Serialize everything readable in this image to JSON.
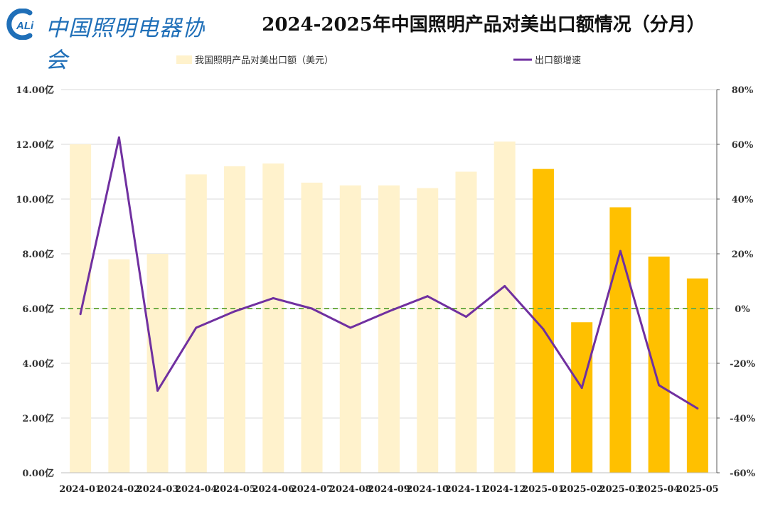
{
  "logo": {
    "mark_text": "ALi",
    "org_name": "中国照明电器协会",
    "brand_color": "#1f6fb8"
  },
  "chart_data": {
    "type": "bar",
    "title": "2024-2025年中国照明产品对美出口额情况（分月）",
    "categories": [
      "2024-01",
      "2024-02",
      "2024-03",
      "2024-04",
      "2024-05",
      "2024-06",
      "2024-07",
      "2024-08",
      "2024-09",
      "2024-10",
      "2024-11",
      "2024-12",
      "2025-01",
      "2025-02",
      "2025-03",
      "2025-04",
      "2025-05"
    ],
    "series": [
      {
        "name": "我国照明产品对美出口额（美元）",
        "type": "bar",
        "axis": "left",
        "values": [
          12.0,
          7.8,
          8.0,
          10.9,
          11.2,
          11.3,
          10.6,
          10.5,
          10.5,
          10.4,
          11.0,
          12.1,
          11.1,
          5.5,
          9.7,
          7.9,
          7.1
        ],
        "color_2024": "#fff2cc",
        "color_2025": "#ffc000"
      },
      {
        "name": "出口额增速",
        "type": "line",
        "axis": "right",
        "values": [
          -2,
          62.5,
          -30,
          -7,
          -1,
          3.8,
          0,
          -7,
          -1,
          4.5,
          -3,
          8.2,
          -7.5,
          -29,
          21,
          -28,
          -36.5
        ],
        "color": "#7030a0"
      }
    ],
    "y_left": {
      "ticks": [
        0,
        2,
        4,
        6,
        8,
        10,
        12,
        14
      ],
      "tick_labels": [
        "0.00亿",
        "2.00亿",
        "4.00亿",
        "6.00亿",
        "8.00亿",
        "10.00亿",
        "12.00亿",
        "14.00亿"
      ],
      "ylim": [
        0,
        14
      ]
    },
    "y_right": {
      "ticks": [
        -60,
        -40,
        -20,
        0,
        20,
        40,
        60,
        80
      ],
      "tick_labels": [
        "-60%",
        "-40%",
        "-20%",
        "0%",
        "20%",
        "40%",
        "60%",
        "80%"
      ],
      "ylim": [
        -60,
        80
      ]
    },
    "reference_line": {
      "axis": "right",
      "value": 0,
      "style": "dashed",
      "color": "#70ad47"
    },
    "grid": true,
    "legend_position": "top"
  }
}
